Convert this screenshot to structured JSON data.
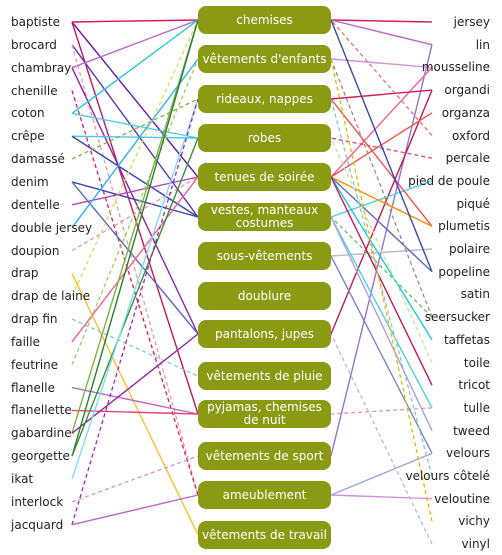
{
  "diagram": {
    "left_labels": [
      "baptiste",
      "brocard",
      "chambray",
      "chenille",
      "coton",
      "crêpe",
      "damassé",
      "denim",
      "dentelle",
      "double jersey",
      "doupion",
      "drap",
      "drap de laine",
      "drap fin",
      "faille",
      "feutrine",
      "flanelle",
      "flanellette",
      "gabardine",
      "georgette",
      "ikat",
      "interlock",
      "jacquard"
    ],
    "center_labels": [
      "chemises",
      "vêtements d'enfants",
      "rideaux, nappes",
      "robes",
      "tenues de soirée",
      "vestes, manteaux costumes",
      "sous-vêtements",
      "doublure",
      "pantalons, jupes",
      "vêtements de pluie",
      "pyjamas, chemises de nuit",
      "vêtements de sport",
      "ameublement",
      "vêtements de travail"
    ],
    "right_labels": [
      "jersey",
      "lin",
      "mousseline",
      "organdi",
      "organza",
      "oxford",
      "percale",
      "pied de poule",
      "piqué",
      "plumetis",
      "polaire",
      "popeline",
      "satin",
      "seersucker",
      "taffetas",
      "toile",
      "tricot",
      "tulle",
      "tweed",
      "velours",
      "velours côtelé",
      "veloutine",
      "vichy",
      "vinyl"
    ],
    "colors": {
      "box_fill": "#8a9b13",
      "box_text": "#ffffff",
      "label_text": "#222222"
    },
    "links": [
      {
        "side": "L",
        "from": 0,
        "to": 0,
        "color": "#d81b60",
        "dash": false
      },
      {
        "side": "L",
        "from": 0,
        "to": 4,
        "color": "#6a1b9a",
        "dash": false
      },
      {
        "side": "L",
        "from": 0,
        "to": 10,
        "color": "#c2185b",
        "dash": false
      },
      {
        "side": "L",
        "from": 1,
        "to": 5,
        "color": "#5e35b1",
        "dash": false
      },
      {
        "side": "L",
        "from": 1,
        "to": 12,
        "color": "#ef9a9a",
        "dash": true
      },
      {
        "side": "L",
        "from": 2,
        "to": 0,
        "color": "#ba68c8",
        "dash": false
      },
      {
        "side": "L",
        "from": 2,
        "to": 8,
        "color": "#8e24aa",
        "dash": false
      },
      {
        "side": "L",
        "from": 3,
        "to": 12,
        "color": "#d81b60",
        "dash": true
      },
      {
        "side": "L",
        "from": 4,
        "to": 0,
        "color": "#26c6da",
        "dash": false
      },
      {
        "side": "L",
        "from": 4,
        "to": 3,
        "color": "#4dd0e1",
        "dash": false
      },
      {
        "side": "L",
        "from": 5,
        "to": 3,
        "color": "#4fc3f7",
        "dash": false
      },
      {
        "side": "L",
        "from": 5,
        "to": 5,
        "color": "#3949ab",
        "dash": false
      },
      {
        "side": "L",
        "from": 6,
        "to": 2,
        "color": "#7cb342",
        "dash": true
      },
      {
        "side": "L",
        "from": 7,
        "to": 5,
        "color": "#3949ab",
        "dash": false
      },
      {
        "side": "L",
        "from": 7,
        "to": 8,
        "color": "#5c6bc0",
        "dash": false
      },
      {
        "side": "L",
        "from": 8,
        "to": 4,
        "color": "#ab47bc",
        "dash": false
      },
      {
        "side": "L",
        "from": 9,
        "to": 1,
        "color": "#29b6f6",
        "dash": false
      },
      {
        "side": "L",
        "from": 10,
        "to": 4,
        "color": "#f48fb1",
        "dash": true
      },
      {
        "side": "L",
        "from": 11,
        "to": 13,
        "color": "#fbc02d",
        "dash": false
      },
      {
        "side": "L",
        "from": 12,
        "to": 0,
        "color": "#d4e157",
        "dash": true
      },
      {
        "side": "L",
        "from": 13,
        "to": 9,
        "color": "#80cbc4",
        "dash": true
      },
      {
        "side": "L",
        "from": 14,
        "to": 4,
        "color": "#f06292",
        "dash": false
      },
      {
        "side": "L",
        "from": 15,
        "to": 1,
        "color": "#9ccc65",
        "dash": true
      },
      {
        "side": "L",
        "from": 16,
        "to": 10,
        "color": "#ba68c8",
        "dash": false
      },
      {
        "side": "L",
        "from": 17,
        "to": 10,
        "color": "#ec407a",
        "dash": false
      },
      {
        "side": "L",
        "from": 18,
        "to": 0,
        "color": "#7cb342",
        "dash": false
      },
      {
        "side": "L",
        "from": 18,
        "to": 8,
        "color": "#8e24aa",
        "dash": false
      },
      {
        "side": "L",
        "from": 19,
        "to": 0,
        "color": "#2e7d32",
        "dash": false
      },
      {
        "side": "L",
        "from": 19,
        "to": 3,
        "color": "#388e3c",
        "dash": false
      },
      {
        "side": "L",
        "from": 20,
        "to": 2,
        "color": "#80deea",
        "dash": false
      },
      {
        "side": "L",
        "from": 21,
        "to": 11,
        "color": "#ce93d8",
        "dash": true
      },
      {
        "side": "L",
        "from": 22,
        "to": 2,
        "color": "#9c27b0",
        "dash": true
      },
      {
        "side": "L",
        "from": 22,
        "to": 12,
        "color": "#ba68c8",
        "dash": false
      },
      {
        "side": "R",
        "from": 0,
        "to": 0,
        "color": "#d81b60",
        "dash": false
      },
      {
        "side": "R",
        "from": 1,
        "to": 0,
        "color": "#ba68c8",
        "dash": false
      },
      {
        "side": "R",
        "from": 1,
        "to": 11,
        "color": "#9575cd",
        "dash": false
      },
      {
        "side": "R",
        "from": 2,
        "to": 1,
        "color": "#ce93d8",
        "dash": false
      },
      {
        "side": "R",
        "from": 2,
        "to": 4,
        "color": "#f06292",
        "dash": false
      },
      {
        "side": "R",
        "from": 3,
        "to": 2,
        "color": "#d81b60",
        "dash": false
      },
      {
        "side": "R",
        "from": 3,
        "to": 8,
        "color": "#c2185b",
        "dash": false
      },
      {
        "side": "R",
        "from": 4,
        "to": 4,
        "color": "#ef5350",
        "dash": false
      },
      {
        "side": "R",
        "from": 5,
        "to": 0,
        "color": "#e57373",
        "dash": true
      },
      {
        "side": "R",
        "from": 6,
        "to": 3,
        "color": "#ec407a",
        "dash": true
      },
      {
        "side": "R",
        "from": 7,
        "to": 5,
        "color": "#4dd0e1",
        "dash": false
      },
      {
        "side": "R",
        "from": 9,
        "to": 2,
        "color": "#ef5350",
        "dash": false
      },
      {
        "side": "R",
        "from": 9,
        "to": 4,
        "color": "#fb8c00",
        "dash": false
      },
      {
        "side": "R",
        "from": 10,
        "to": 6,
        "color": "#b0bec5",
        "dash": false
      },
      {
        "side": "R",
        "from": 11,
        "to": 0,
        "color": "#3949ab",
        "dash": false
      },
      {
        "side": "R",
        "from": 11,
        "to": 4,
        "color": "#5c6bc0",
        "dash": false
      },
      {
        "side": "R",
        "from": 13,
        "to": 5,
        "color": "#66bb6a",
        "dash": true
      },
      {
        "side": "R",
        "from": 13,
        "to": 1,
        "color": "#a1887f",
        "dash": true
      },
      {
        "side": "R",
        "from": 14,
        "to": 4,
        "color": "#26c6da",
        "dash": false
      },
      {
        "side": "R",
        "from": 15,
        "to": 3,
        "color": "#c5e1a5",
        "dash": true
      },
      {
        "side": "R",
        "from": 16,
        "to": 4,
        "color": "#c2185b",
        "dash": false
      },
      {
        "side": "R",
        "from": 17,
        "to": 5,
        "color": "#4dd0e1",
        "dash": false
      },
      {
        "side": "R",
        "from": 17,
        "to": 10,
        "color": "#f48fb1",
        "dash": true
      },
      {
        "side": "R",
        "from": 18,
        "to": 5,
        "color": "#b39ddb",
        "dash": false
      },
      {
        "side": "R",
        "from": 19,
        "to": 12,
        "color": "#9fa8da",
        "dash": false
      },
      {
        "side": "R",
        "from": 19,
        "to": 6,
        "color": "#7986cb",
        "dash": false
      },
      {
        "side": "R",
        "from": 20,
        "to": 2,
        "color": "#80cbc4",
        "dash": true
      },
      {
        "side": "R",
        "from": 21,
        "to": 12,
        "color": "#ce93d8",
        "dash": false
      },
      {
        "side": "R",
        "from": 22,
        "to": 1,
        "color": "#e6b800",
        "dash": true
      },
      {
        "side": "R",
        "from": 23,
        "to": 8,
        "color": "#b0bec5",
        "dash": true
      }
    ]
  }
}
